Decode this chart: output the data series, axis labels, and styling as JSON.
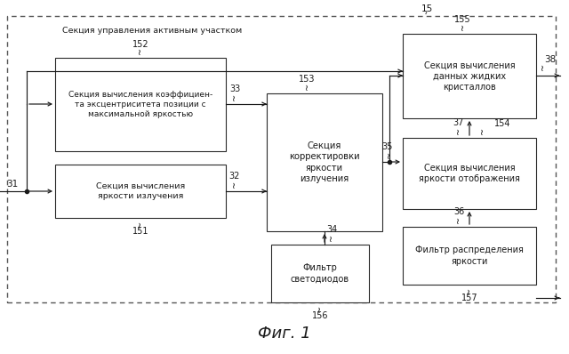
{
  "title": "Фиг. 1",
  "outer_label": "15",
  "section_label": "Секция управления активным участком",
  "label_152": "152",
  "label_151": "151",
  "label_153": "153",
  "label_156": "156",
  "label_155": "155",
  "label_154": "154",
  "label_157": "157",
  "label_31": "31",
  "label_33": "33",
  "label_32": "32",
  "label_34": "34",
  "label_35": "35",
  "label_36": "36",
  "label_37": "37",
  "label_38": "38",
  "text_152": "Секция вычисления коэффициен-\nта эксцентриситета позиции с\nмаксимальной яркостью",
  "text_151": "Секция вычисления\nяркости излучения",
  "text_153": "Секция\nкорректировки\nяркости\nизлучения",
  "text_156": "Фильтр\nсветодиодов",
  "text_155": "Секция вычисления\nданных жидких\nкристаллов",
  "text_154": "Секция вычисления\nяркости отображения",
  "text_157": "Фильтр распределения\nяркости",
  "bg_color": "#ffffff",
  "box_color": "#ffffff",
  "box_edge": "#2a2a2a",
  "text_color": "#1a1a1a",
  "arrow_color": "#1a1a1a",
  "dashed_color": "#555555"
}
